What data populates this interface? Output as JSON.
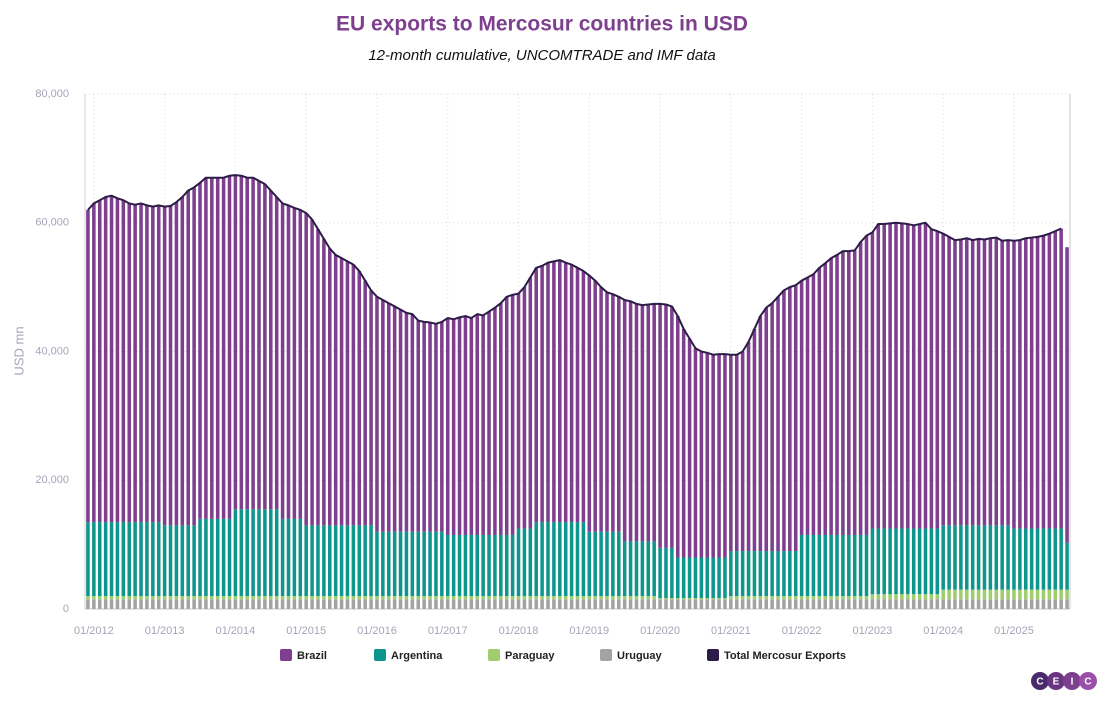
{
  "chart_data": {
    "type": "bar",
    "stacked": true,
    "title": "EU exports to Mercosur countries in USD",
    "subtitle": "12-month cumulative, UNCOMTRADE and IMF data",
    "y_label": "USD mn",
    "logo": [
      "C",
      "E",
      "I",
      "C"
    ],
    "ylim": [
      0,
      80000
    ],
    "yticks": [
      0,
      {
        "value": 20000,
        "label": "20,000"
      },
      {
        "value": 40000,
        "label": "40,000"
      },
      {
        "value": 60000,
        "label": "60,000"
      },
      {
        "value": 80000,
        "label": "80,000"
      }
    ],
    "grid": true,
    "legend": "bottom",
    "categories": [
      null,
      "01/2012",
      null,
      null,
      null,
      null,
      null,
      null,
      null,
      null,
      null,
      null,
      null,
      "01/2013",
      null,
      null,
      null,
      null,
      null,
      null,
      null,
      null,
      null,
      null,
      null,
      "01/2014",
      null,
      null,
      null,
      null,
      null,
      null,
      null,
      null,
      null,
      null,
      null,
      "01/2015",
      null,
      null,
      null,
      null,
      null,
      null,
      null,
      null,
      null,
      null,
      null,
      "01/2016",
      null,
      null,
      null,
      null,
      null,
      null,
      null,
      null,
      null,
      null,
      null,
      "01/2017",
      null,
      null,
      null,
      null,
      null,
      null,
      null,
      null,
      null,
      null,
      null,
      "01/2018",
      null,
      null,
      null,
      null,
      null,
      null,
      null,
      null,
      null,
      null,
      null,
      "01/2019",
      null,
      null,
      null,
      null,
      null,
      null,
      null,
      null,
      null,
      null,
      null,
      "01/2020",
      null,
      null,
      null,
      null,
      null,
      null,
      null,
      null,
      null,
      null,
      null,
      "01/2021",
      null,
      null,
      null,
      null,
      null,
      null,
      null,
      null,
      null,
      null,
      null,
      "01/2022",
      null,
      null,
      null,
      null,
      null,
      null,
      null,
      null,
      null,
      null,
      null,
      "01/2023",
      null,
      null,
      null,
      null,
      null,
      null,
      null,
      null,
      null,
      null,
      null,
      "01/2024",
      null,
      null,
      null,
      null,
      null,
      null,
      null,
      null,
      null,
      null,
      null,
      "01/2025",
      null,
      null,
      null,
      null,
      null,
      null,
      null,
      null,
      null
    ],
    "series": [
      {
        "name": "Brazil",
        "color": "#7d3f8e",
        "values": [
          48500,
          49500,
          50000,
          50500,
          50700,
          50300,
          50000,
          49500,
          49300,
          49500,
          49200,
          49000,
          49200,
          49500,
          49600,
          50200,
          51000,
          52000,
          52500,
          52200,
          53000,
          53000,
          53000,
          53000,
          53300,
          51900,
          51800,
          51500,
          51500,
          51000,
          50500,
          49500,
          48500,
          49000,
          48700,
          48300,
          48000,
          48500,
          47500,
          46000,
          44500,
          43000,
          42000,
          41500,
          41000,
          40500,
          39500,
          38000,
          36500,
          36500,
          36000,
          35500,
          35000,
          34500,
          34000,
          33800,
          32800,
          32600,
          32500,
          32300,
          32600,
          33700,
          33500,
          33800,
          34000,
          33700,
          34300,
          34100,
          34700,
          35300,
          36000,
          37000,
          37300,
          36500,
          37500,
          39000,
          39500,
          39800,
          40300,
          40500,
          40700,
          40300,
          40000,
          39500,
          39000,
          39800,
          39000,
          38000,
          37200,
          36900,
          36500,
          37500,
          37300,
          36900,
          36700,
          36800,
          36900,
          37900,
          37800,
          37500,
          37500,
          35500,
          34000,
          32500,
          32000,
          31800,
          31500,
          31600,
          31600,
          30500,
          30500,
          31000,
          32500,
          34500,
          36500,
          37800,
          38500,
          39500,
          40500,
          41000,
          41300,
          39500,
          40000,
          40500,
          41500,
          42200,
          43000,
          43500,
          44100,
          44100,
          44200,
          45500,
          46500,
          46000,
          47300,
          47300,
          47400,
          47500,
          47400,
          47300,
          47100,
          47300,
          47500,
          46500,
          46200,
          45300,
          44800,
          44300,
          44400,
          44600,
          44300,
          44500,
          44400,
          44600,
          44700,
          44200,
          44300,
          44700,
          44800,
          45100,
          45200,
          45300,
          45500,
          45800,
          46200,
          46600,
          45900
        ]
      },
      {
        "name": "Argentina",
        "color": "#0f968c",
        "values": [
          11500,
          11500,
          11500,
          11500,
          11500,
          11500,
          11500,
          11500,
          11500,
          11500,
          11500,
          11500,
          11500,
          11000,
          11000,
          11000,
          11000,
          11000,
          11000,
          12000,
          12000,
          12000,
          12000,
          12000,
          12000,
          13500,
          13500,
          13500,
          13500,
          13500,
          13500,
          13500,
          13500,
          12000,
          12000,
          12000,
          12000,
          11000,
          11000,
          11000,
          11000,
          11000,
          11000,
          11000,
          11000,
          11000,
          11000,
          11000,
          11000,
          10000,
          10000,
          10000,
          10000,
          10000,
          10000,
          10000,
          10000,
          10000,
          10000,
          10000,
          10000,
          9500,
          9500,
          9500,
          9500,
          9500,
          9500,
          9500,
          9500,
          9500,
          9500,
          9500,
          9500,
          10500,
          10500,
          10500,
          11500,
          11500,
          11500,
          11500,
          11500,
          11500,
          11500,
          11500,
          11500,
          10000,
          10000,
          10000,
          10000,
          10000,
          10000,
          8500,
          8500,
          8500,
          8500,
          8500,
          8500,
          7800,
          7800,
          7800,
          6300,
          6300,
          6300,
          6300,
          6300,
          6300,
          6300,
          6300,
          6300,
          7000,
          7000,
          7000,
          7000,
          7000,
          7000,
          7000,
          7000,
          7000,
          7000,
          7000,
          7000,
          9500,
          9500,
          9500,
          9500,
          9500,
          9500,
          9500,
          9500,
          9500,
          9500,
          9500,
          9500,
          10200,
          10200,
          10200,
          10200,
          10200,
          10200,
          10200,
          10200,
          10200,
          10200,
          10200,
          10200,
          10000,
          10000,
          10000,
          10000,
          10000,
          10000,
          10000,
          10000,
          10000,
          10000,
          10000,
          10000,
          9500,
          9500,
          9500,
          9500,
          9500,
          9500,
          9500,
          9500,
          9500,
          7300
        ]
      },
      {
        "name": "Paraguay",
        "color": "#a0ce6e",
        "values": [
          500,
          500,
          500,
          500,
          500,
          500,
          500,
          500,
          500,
          500,
          500,
          500,
          500,
          500,
          500,
          500,
          500,
          500,
          500,
          500,
          500,
          500,
          500,
          500,
          500,
          500,
          500,
          500,
          500,
          500,
          500,
          500,
          500,
          500,
          500,
          500,
          500,
          500,
          500,
          500,
          500,
          500,
          500,
          500,
          500,
          500,
          500,
          500,
          500,
          500,
          500,
          500,
          500,
          500,
          500,
          500,
          500,
          500,
          500,
          500,
          500,
          500,
          500,
          500,
          500,
          500,
          500,
          500,
          500,
          500,
          500,
          500,
          500,
          500,
          500,
          500,
          500,
          500,
          500,
          500,
          500,
          500,
          500,
          500,
          500,
          500,
          500,
          500,
          500,
          500,
          500,
          500,
          500,
          500,
          500,
          500,
          500,
          200,
          200,
          200,
          200,
          200,
          200,
          200,
          200,
          200,
          200,
          200,
          200,
          500,
          500,
          500,
          500,
          500,
          500,
          500,
          500,
          500,
          500,
          500,
          500,
          500,
          500,
          500,
          500,
          500,
          500,
          500,
          500,
          500,
          500,
          500,
          500,
          800,
          800,
          800,
          800,
          800,
          800,
          800,
          800,
          800,
          800,
          800,
          800,
          1500,
          1500,
          1500,
          1500,
          1500,
          1500,
          1500,
          1500,
          1500,
          1500,
          1500,
          1500,
          1500,
          1500,
          1500,
          1500,
          1500,
          1500,
          1500,
          1500,
          1500,
          1500
        ]
      },
      {
        "name": "Uruguay",
        "color": "#a3a3a3",
        "values": [
          1500,
          1500,
          1500,
          1500,
          1500,
          1500,
          1500,
          1500,
          1500,
          1500,
          1500,
          1500,
          1500,
          1500,
          1500,
          1500,
          1500,
          1500,
          1500,
          1500,
          1500,
          1500,
          1500,
          1500,
          1500,
          1500,
          1500,
          1500,
          1500,
          1500,
          1500,
          1500,
          1500,
          1500,
          1500,
          1500,
          1500,
          1500,
          1500,
          1500,
          1500,
          1500,
          1500,
          1500,
          1500,
          1500,
          1500,
          1500,
          1500,
          1500,
          1500,
          1500,
          1500,
          1500,
          1500,
          1500,
          1500,
          1500,
          1500,
          1500,
          1500,
          1500,
          1500,
          1500,
          1500,
          1500,
          1500,
          1500,
          1500,
          1500,
          1500,
          1500,
          1500,
          1500,
          1500,
          1500,
          1500,
          1500,
          1500,
          1500,
          1500,
          1500,
          1500,
          1500,
          1500,
          1500,
          1500,
          1500,
          1500,
          1500,
          1500,
          1500,
          1500,
          1500,
          1500,
          1500,
          1500,
          1500,
          1500,
          1500,
          1500,
          1500,
          1500,
          1500,
          1500,
          1500,
          1500,
          1500,
          1500,
          1500,
          1500,
          1500,
          1500,
          1500,
          1500,
          1500,
          1500,
          1500,
          1500,
          1500,
          1500,
          1500,
          1500,
          1500,
          1500,
          1500,
          1500,
          1500,
          1500,
          1500,
          1500,
          1500,
          1500,
          1500,
          1500,
          1500,
          1500,
          1500,
          1500,
          1500,
          1500,
          1500,
          1500,
          1500,
          1500,
          1500,
          1500,
          1500,
          1500,
          1500,
          1500,
          1500,
          1500,
          1500,
          1500,
          1500,
          1500,
          1500,
          1500,
          1500,
          1500,
          1500,
          1500,
          1500,
          1500,
          1500,
          1500
        ]
      },
      {
        "name": "Total Mercosur Exports",
        "type": "line",
        "color": "#2d1b48",
        "values": [
          62000,
          63000,
          63500,
          64000,
          64200,
          63800,
          63500,
          63000,
          62800,
          63000,
          62700,
          62500,
          62700,
          62500,
          62600,
          63200,
          64000,
          65000,
          65500,
          66200,
          67000,
          67000,
          67000,
          67000,
          67300,
          67400,
          67300,
          67000,
          67000,
          66500,
          66000,
          65000,
          64000,
          63000,
          62700,
          62300,
          62000,
          61500,
          60500,
          59000,
          57500,
          56000,
          55000,
          54500,
          54000,
          53500,
          52500,
          51000,
          49500,
          48500,
          48000,
          47500,
          47000,
          46500,
          46000,
          45800,
          44800,
          44600,
          44500,
          44300,
          44600,
          45200,
          45000,
          45300,
          45500,
          45200,
          45800,
          45600,
          46200,
          46800,
          47500,
          48500,
          48800,
          49000,
          50000,
          51500,
          53000,
          53300,
          53800,
          54000,
          54200,
          53800,
          53500,
          53000,
          52500,
          51800,
          51000,
          50000,
          49200,
          48900,
          48500,
          48000,
          47800,
          47400,
          47200,
          47300,
          47400,
          47400,
          47300,
          47000,
          45500,
          43500,
          42000,
          40500,
          40000,
          39800,
          39500,
          39600,
          39600,
          39500,
          39500,
          40000,
          41500,
          43500,
          45500,
          46800,
          47500,
          48500,
          49500,
          50000,
          50300,
          51000,
          51500,
          52000,
          53000,
          53700,
          54500,
          55000,
          55600,
          55600,
          55700,
          57000,
          58000,
          58500,
          59800,
          59800,
          59900,
          60000,
          59900,
          59800,
          59600,
          59800,
          60000,
          59000,
          58700,
          58300,
          57800,
          57300,
          57400,
          57600,
          57300,
          57500,
          57400,
          57600,
          57700,
          57200,
          57300,
          57200,
          57300,
          57600,
          57700,
          57800,
          58000,
          58300,
          58700,
          59100,
          null
        ]
      }
    ]
  }
}
